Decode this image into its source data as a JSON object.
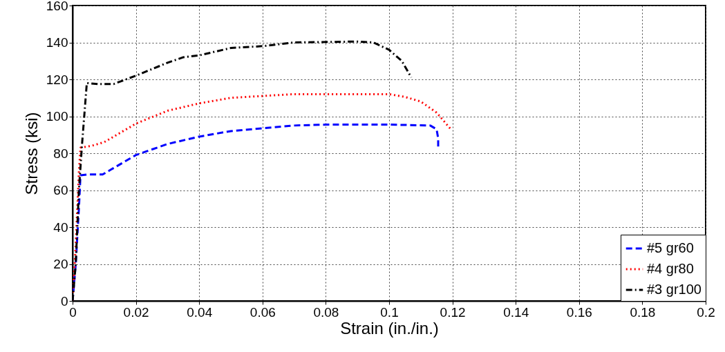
{
  "chart_data": {
    "type": "line",
    "xlabel": "Strain (in./in.)",
    "ylabel": "Stress (ksi)",
    "xlim": [
      0,
      0.2
    ],
    "xticks": [
      0,
      0.02,
      0.04,
      0.06,
      0.08,
      0.1,
      0.12,
      0.14,
      0.16,
      0.18,
      0.2
    ],
    "ylim": [
      0,
      160
    ],
    "yticks": [
      0,
      20,
      40,
      60,
      80,
      100,
      120,
      140,
      160
    ],
    "grid": true,
    "legend": "bottom right",
    "series": [
      {
        "name": "#5 gr60",
        "color": "#0000ff",
        "line_style": "dashed",
        "x": [
          0,
          0.001,
          0.002,
          0.0025,
          0.005,
          0.0095,
          0.012,
          0.02,
          0.03,
          0.04,
          0.05,
          0.06,
          0.07,
          0.08,
          0.1,
          0.113,
          0.115,
          0.1155,
          0.1155
        ],
        "values": [
          0,
          20,
          50,
          68,
          68.5,
          68.5,
          71,
          79,
          85,
          89,
          92,
          93.5,
          95,
          95.5,
          95.5,
          95,
          93,
          88,
          83
        ]
      },
      {
        "name": "#4 gr80",
        "color": "#ff0000",
        "line_style": "dotted",
        "x": [
          0,
          0.001,
          0.002,
          0.0025,
          0.006,
          0.01,
          0.015,
          0.02,
          0.03,
          0.04,
          0.05,
          0.06,
          0.07,
          0.08,
          0.1,
          0.105,
          0.11,
          0.115,
          0.1195
        ],
        "values": [
          0,
          30,
          70,
          83,
          84,
          86,
          91,
          96,
          103,
          107,
          110,
          111,
          112,
          112,
          112,
          110.5,
          108,
          102,
          93
        ]
      },
      {
        "name": "#3 gr100",
        "color": "#000000",
        "line_style": "dashdot",
        "x": [
          0,
          0.001,
          0.002,
          0.003,
          0.0045,
          0.008,
          0.013,
          0.02,
          0.03,
          0.035,
          0.04,
          0.05,
          0.06,
          0.07,
          0.09,
          0.095,
          0.1,
          0.104,
          0.107
        ],
        "values": [
          0,
          20,
          60,
          85,
          118,
          117.5,
          117.5,
          122,
          129,
          132,
          133,
          137,
          138,
          140,
          140.5,
          140,
          136,
          130,
          121
        ]
      }
    ]
  }
}
